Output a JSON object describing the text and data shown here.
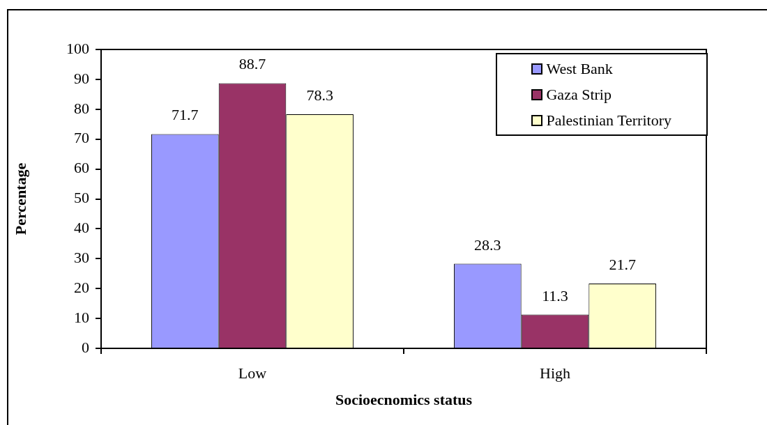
{
  "chart_data": {
    "type": "bar",
    "xlabel": "Socioecnomics status",
    "ylabel": "Percentage",
    "categories": [
      "Low",
      "High"
    ],
    "series": [
      {
        "name": "West Bank",
        "color": "#9999ff",
        "values": [
          71.7,
          28.3
        ]
      },
      {
        "name": "Gaza Strip",
        "color": "#993366",
        "values": [
          88.7,
          11.3
        ]
      },
      {
        "name": "Palestinian Territory",
        "color": "#ffffcc",
        "values": [
          78.3,
          21.7
        ]
      }
    ],
    "ylim": [
      0,
      100
    ],
    "yticks": [
      0,
      10,
      20,
      30,
      40,
      50,
      60,
      70,
      80,
      90,
      100
    ],
    "grid": false,
    "legend": "top right",
    "data_labels": true
  }
}
